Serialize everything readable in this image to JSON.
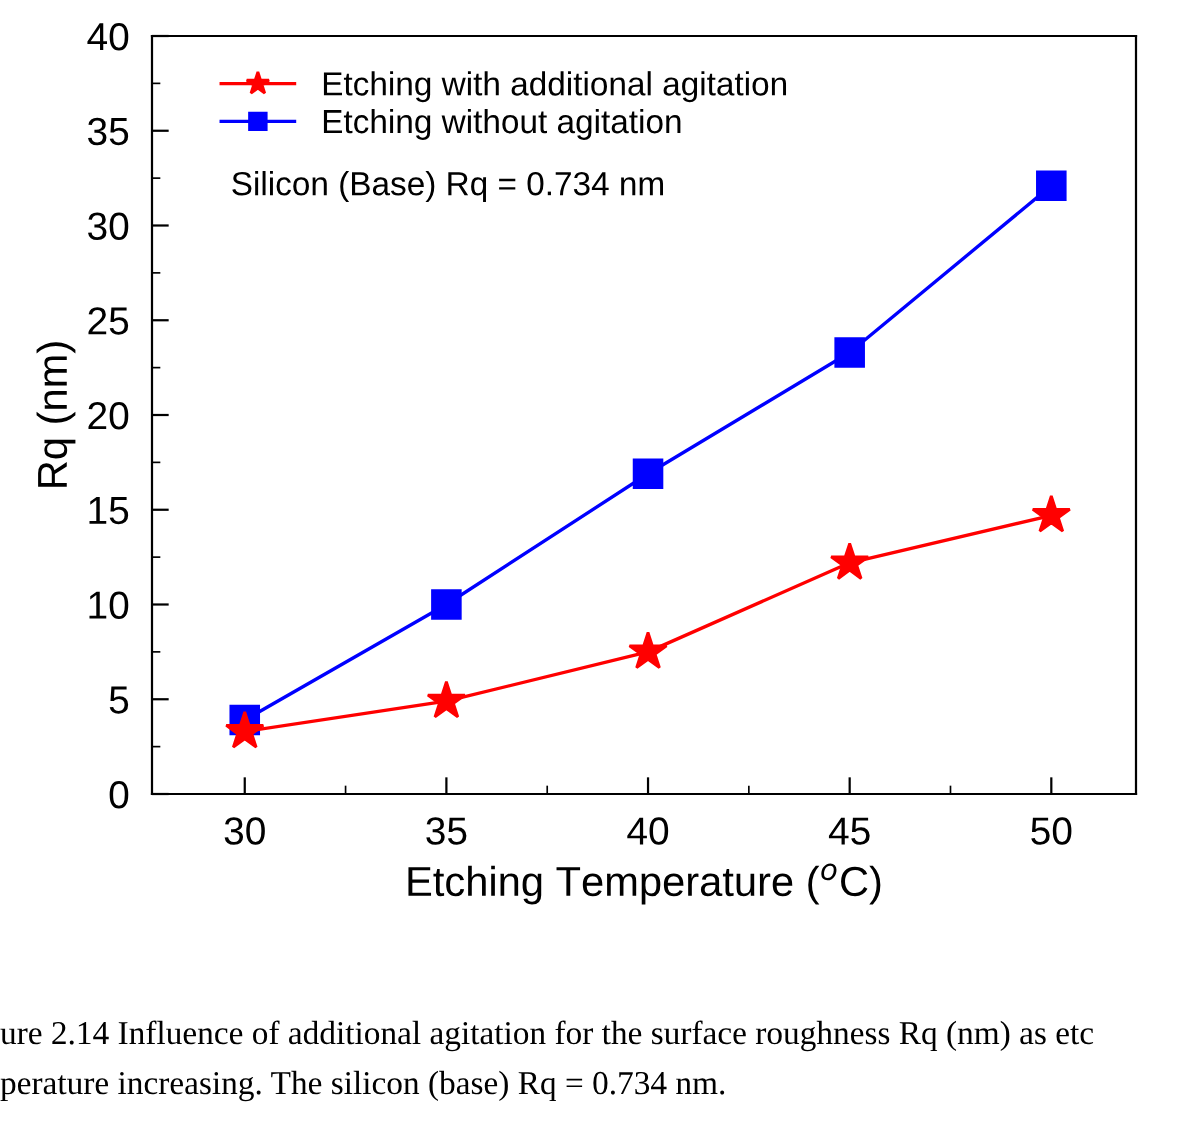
{
  "chart_data": {
    "type": "line",
    "xlabel": "Etching Temperature ($^{o}$C)",
    "ylabel": "Rq (nm)",
    "x": [
      30,
      35,
      40,
      45,
      50
    ],
    "series": [
      {
        "name": "Etching with additional agitation",
        "color": "#ff0000",
        "marker": "star",
        "values": [
          3.3,
          4.9,
          7.5,
          12.2,
          14.7
        ]
      },
      {
        "name": "Etching without agitation",
        "color": "#0000ff",
        "marker": "square",
        "values": [
          3.9,
          10.0,
          16.9,
          23.3,
          32.1
        ]
      }
    ],
    "xlim": [
      27.7,
      52.1
    ],
    "xticks": [
      30,
      35,
      40,
      45,
      50
    ],
    "ylim": [
      0,
      40
    ],
    "yticks": [
      0,
      5,
      10,
      15,
      20,
      25,
      30,
      35,
      40
    ],
    "grid": false,
    "legend": "top left",
    "line_style": "solid",
    "annotations": [
      "Silicon (Base) Rq = 0.734 nm",
      "ure 2.14 Influence of additional agitation for the surface roughness Rq (nm) as etc",
      "perature increasing. The silicon (base) Rq = 0.734 nm."
    ]
  }
}
